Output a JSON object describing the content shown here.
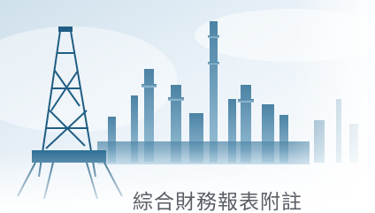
{
  "caption": "綜合財務報表附註"
}
